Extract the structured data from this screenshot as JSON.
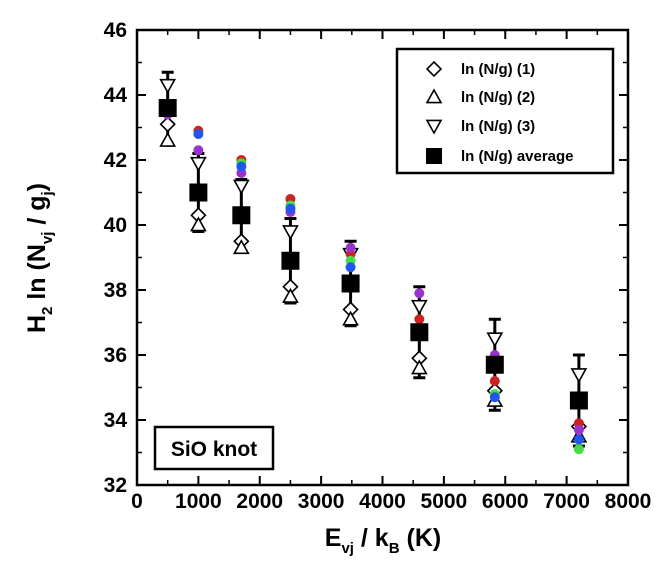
{
  "chart_data": {
    "type": "scatter",
    "xlabel": {
      "main": "E",
      "sub1": "vj",
      "mid": " / k",
      "sub2": "B",
      "tail": " (K)"
    },
    "ylabel": {
      "main": "H",
      "sub1": "2",
      "mid": " ln (N",
      "sub2": "vj",
      "mid2": " / g",
      "sub3": "j",
      "tail": ")"
    },
    "xlim": [
      0,
      8000
    ],
    "ylim": [
      32,
      46
    ],
    "xticks": [
      "0",
      "1000",
      "2000",
      "3000",
      "4000",
      "5000",
      "6000",
      "7000",
      "8000"
    ],
    "yticks": [
      "32",
      "34",
      "36",
      "38",
      "40",
      "42",
      "44",
      "46"
    ],
    "annotation": "SiO knot",
    "legend_position": "top-right",
    "series": [
      {
        "name": "ln (N/g) (1)",
        "marker": "diamond",
        "points": [
          [
            500,
            43.1
          ],
          [
            1000,
            40.3
          ],
          [
            1700,
            39.5
          ],
          [
            2500,
            38.1
          ],
          [
            3480,
            37.4
          ],
          [
            4600,
            35.9
          ],
          [
            5830,
            34.9
          ],
          [
            7200,
            33.8
          ]
        ]
      },
      {
        "name": "ln (N/g) (2)",
        "marker": "triangle-up",
        "points": [
          [
            500,
            42.6
          ],
          [
            1000,
            40.0
          ],
          [
            1700,
            39.3
          ],
          [
            2500,
            37.8
          ],
          [
            3480,
            37.1
          ],
          [
            4600,
            35.6
          ],
          [
            5830,
            34.6
          ],
          [
            7200,
            33.5
          ]
        ]
      },
      {
        "name": "ln (N/g) (3)",
        "marker": "triangle-down",
        "points": [
          [
            500,
            44.3
          ],
          [
            1000,
            41.9
          ],
          [
            1700,
            41.2
          ],
          [
            2500,
            39.8
          ],
          [
            3480,
            39.1
          ],
          [
            4600,
            37.5
          ],
          [
            5830,
            36.5
          ],
          [
            7200,
            35.4
          ]
        ]
      },
      {
        "name": "ln (N/g) average",
        "marker": "square",
        "points": [
          [
            500,
            43.6
          ],
          [
            1000,
            41.0
          ],
          [
            1700,
            40.3
          ],
          [
            2500,
            38.9
          ],
          [
            3480,
            38.2
          ],
          [
            4600,
            36.7
          ],
          [
            5830,
            35.7
          ],
          [
            7200,
            34.6
          ]
        ],
        "errors": [
          1.1,
          1.2,
          1.1,
          1.3,
          1.3,
          1.4,
          1.4,
          1.4
        ]
      }
    ],
    "extra_points": [
      {
        "color": "#cc2222",
        "points": [
          [
            500,
            43.7
          ],
          [
            1000,
            42.9
          ],
          [
            1700,
            42.0
          ],
          [
            2500,
            40.8
          ],
          [
            3480,
            39.1
          ],
          [
            4600,
            37.1
          ],
          [
            5830,
            35.2
          ],
          [
            7200,
            33.9
          ]
        ]
      },
      {
        "color": "#9933cc",
        "points": [
          [
            500,
            43.4
          ],
          [
            1000,
            42.3
          ],
          [
            1700,
            41.6
          ],
          [
            2500,
            40.4
          ],
          [
            3480,
            39.3
          ],
          [
            4600,
            37.9
          ],
          [
            5830,
            36.0
          ],
          [
            7200,
            33.7
          ]
        ]
      },
      {
        "color": "#44dd44",
        "points": [
          [
            500,
            43.5
          ],
          [
            1000,
            42.8
          ],
          [
            1700,
            41.9
          ],
          [
            2500,
            40.6
          ],
          [
            3480,
            38.9
          ],
          [
            4600,
            36.8
          ],
          [
            5830,
            34.8
          ],
          [
            7200,
            33.1
          ]
        ]
      },
      {
        "color": "#2255ee",
        "points": [
          [
            500,
            43.6
          ],
          [
            1000,
            42.8
          ],
          [
            1700,
            41.8
          ],
          [
            2500,
            40.5
          ],
          [
            3480,
            38.7
          ],
          [
            4600,
            36.6
          ],
          [
            5830,
            34.7
          ],
          [
            7200,
            33.4
          ]
        ]
      }
    ]
  }
}
